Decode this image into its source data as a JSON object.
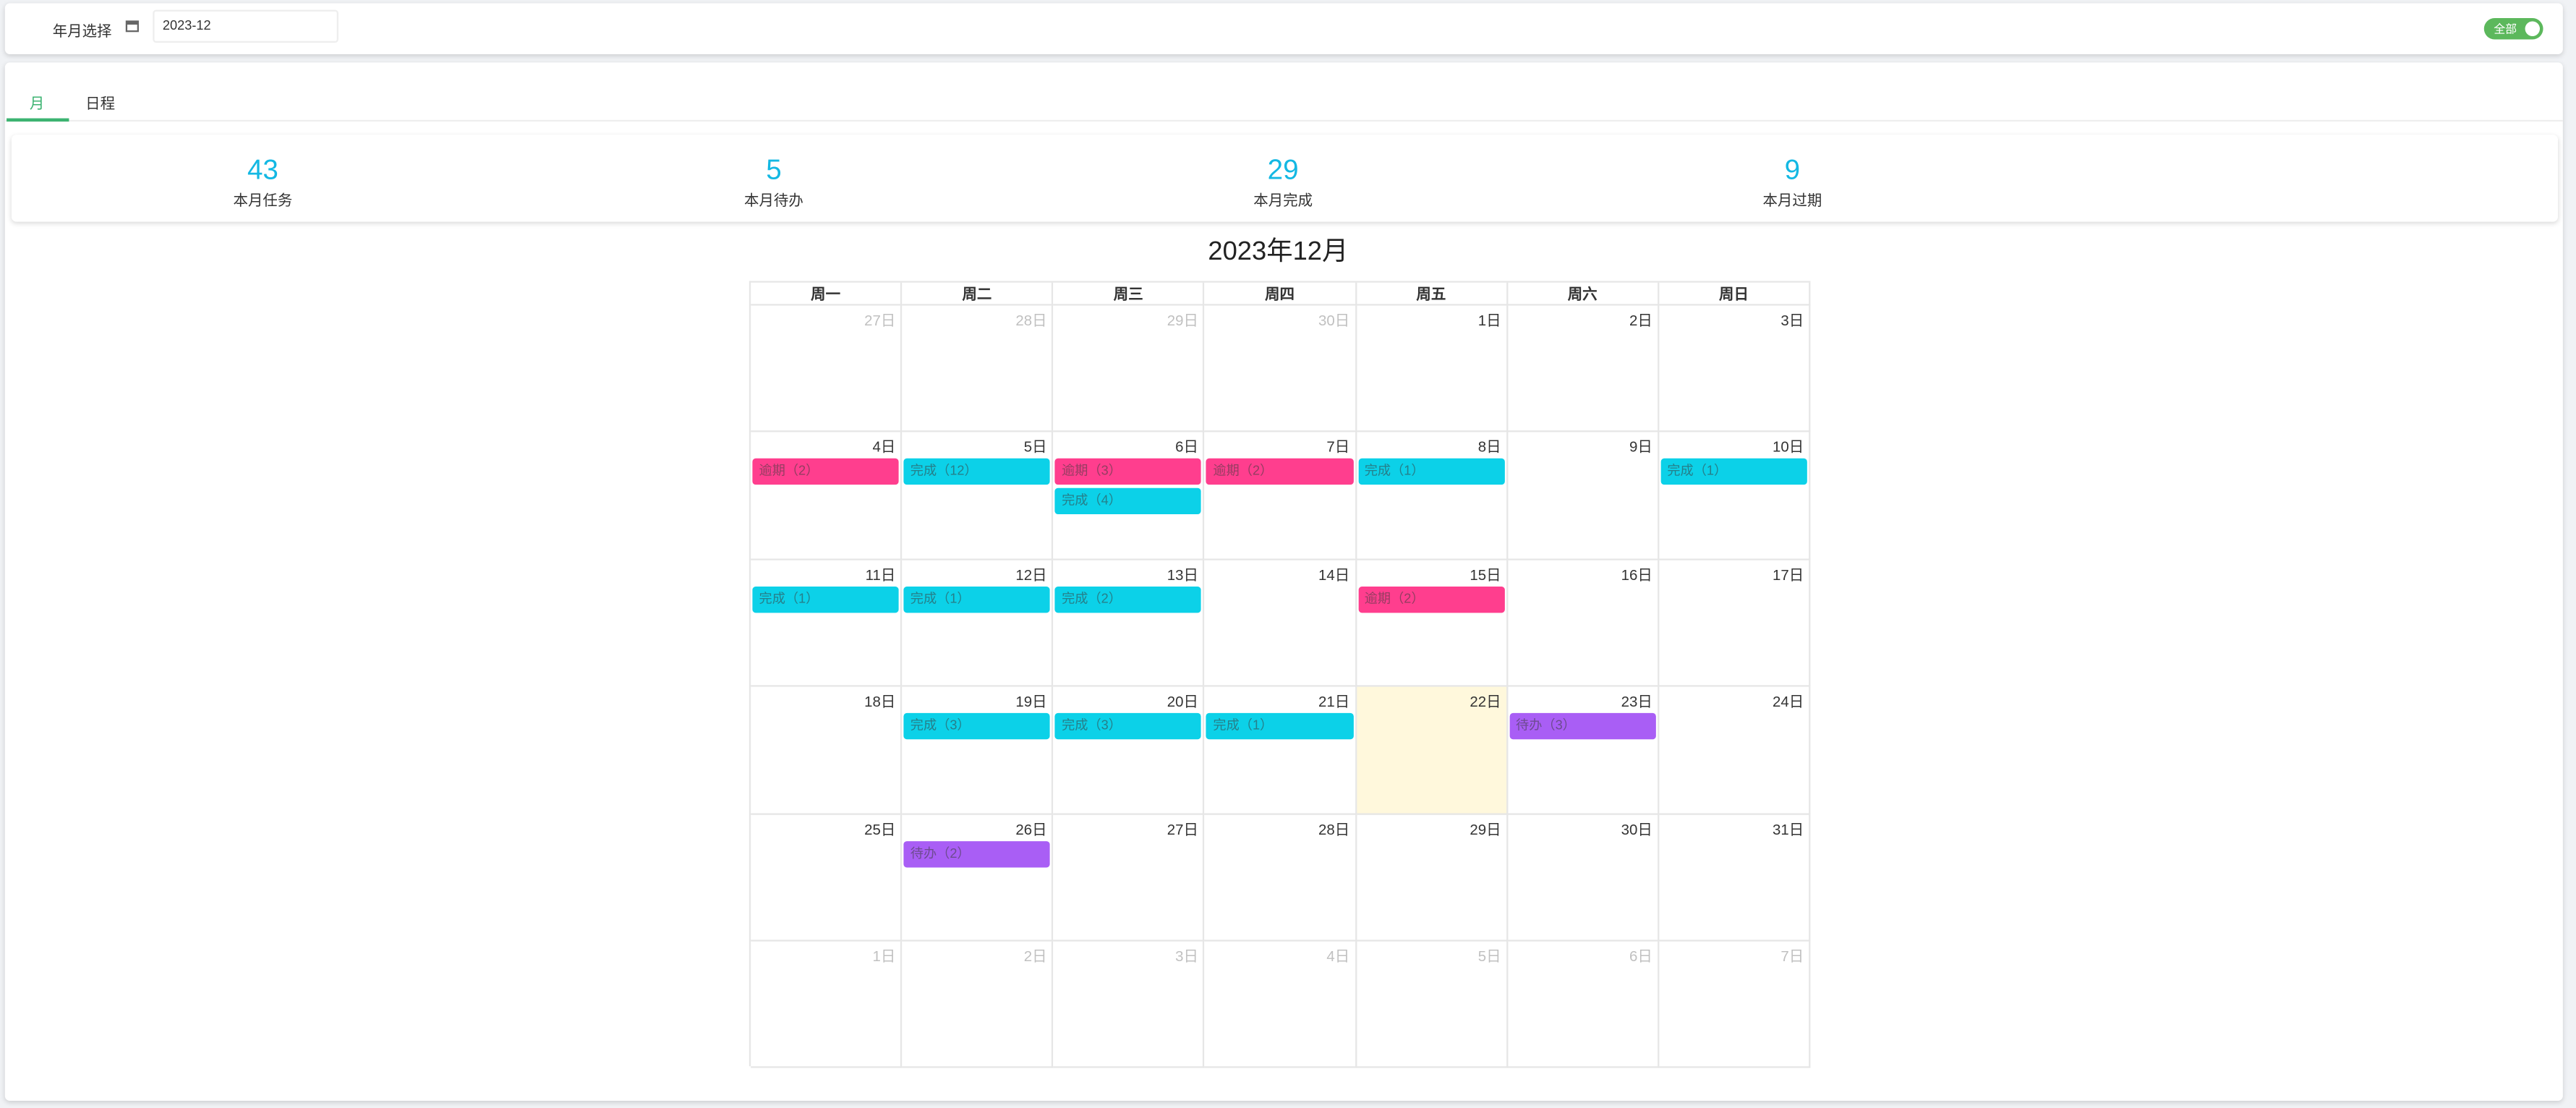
{
  "header": {
    "label": "年月选择",
    "date_value": "2023-12",
    "toggle_label": "全部"
  },
  "tabs": [
    "月",
    "日程"
  ],
  "stats": [
    {
      "value": "43",
      "label": "本月任务"
    },
    {
      "value": "5",
      "label": "本月待办"
    },
    {
      "value": "29",
      "label": "本月完成"
    },
    {
      "value": "9",
      "label": "本月过期"
    }
  ],
  "calendar": {
    "title": "2023年12月",
    "weekdays": [
      "周一",
      "周二",
      "周三",
      "周四",
      "周五",
      "周六",
      "周日"
    ],
    "weeks": [
      [
        {
          "label": "27日",
          "other_month": true
        },
        {
          "label": "28日",
          "other_month": true
        },
        {
          "label": "29日",
          "other_month": true
        },
        {
          "label": "30日",
          "other_month": true
        },
        {
          "label": "1日"
        },
        {
          "label": "2日"
        },
        {
          "label": "3日"
        }
      ],
      [
        {
          "label": "4日",
          "events": [
            {
              "label": "逾期（2）",
              "color": "#ff3e8e"
            }
          ]
        },
        {
          "label": "5日",
          "events": [
            {
              "label": "完成（12）",
              "color": "#0cd1e8"
            }
          ]
        },
        {
          "label": "6日",
          "events": [
            {
              "label": "逾期（3）",
              "color": "#ff3e8e"
            },
            {
              "label": "完成（4）",
              "color": "#0cd1e8"
            }
          ]
        },
        {
          "label": "7日",
          "events": [
            {
              "label": "逾期（2）",
              "color": "#ff3e8e"
            }
          ]
        },
        {
          "label": "8日",
          "events": [
            {
              "label": "完成（1）",
              "color": "#0cd1e8"
            }
          ]
        },
        {
          "label": "9日"
        },
        {
          "label": "10日",
          "events": [
            {
              "label": "完成（1）",
              "color": "#0cd1e8"
            }
          ]
        }
      ],
      [
        {
          "label": "11日",
          "events": [
            {
              "label": "完成（1）",
              "color": "#0cd1e8"
            }
          ]
        },
        {
          "label": "12日",
          "events": [
            {
              "label": "完成（1）",
              "color": "#0cd1e8"
            }
          ]
        },
        {
          "label": "13日",
          "events": [
            {
              "label": "完成（2）",
              "color": "#0cd1e8"
            }
          ]
        },
        {
          "label": "14日"
        },
        {
          "label": "15日",
          "events": [
            {
              "label": "逾期（2）",
              "color": "#ff3e8e"
            }
          ]
        },
        {
          "label": "16日"
        },
        {
          "label": "17日"
        }
      ],
      [
        {
          "label": "18日"
        },
        {
          "label": "19日",
          "events": [
            {
              "label": "完成（3）",
              "color": "#0cd1e8"
            }
          ]
        },
        {
          "label": "20日",
          "events": [
            {
              "label": "完成（3）",
              "color": "#0cd1e8"
            }
          ]
        },
        {
          "label": "21日",
          "events": [
            {
              "label": "完成（1）",
              "color": "#0cd1e8"
            }
          ]
        },
        {
          "label": "22日",
          "highlight": true
        },
        {
          "label": "23日",
          "events": [
            {
              "label": "待办（3）",
              "color": "#a95ef5"
            }
          ]
        },
        {
          "label": "24日"
        }
      ],
      [
        {
          "label": "25日"
        },
        {
          "label": "26日",
          "events": [
            {
              "label": "待办（2）",
              "color": "#a95ef5"
            }
          ]
        },
        {
          "label": "27日"
        },
        {
          "label": "28日"
        },
        {
          "label": "29日"
        },
        {
          "label": "30日"
        },
        {
          "label": "31日"
        }
      ],
      [
        {
          "label": "1日",
          "other_month": true
        },
        {
          "label": "2日",
          "other_month": true
        },
        {
          "label": "3日",
          "other_month": true
        },
        {
          "label": "4日",
          "other_month": true
        },
        {
          "label": "5日",
          "other_month": true
        },
        {
          "label": "6日",
          "other_month": true
        },
        {
          "label": "7日",
          "other_month": true
        }
      ]
    ]
  }
}
